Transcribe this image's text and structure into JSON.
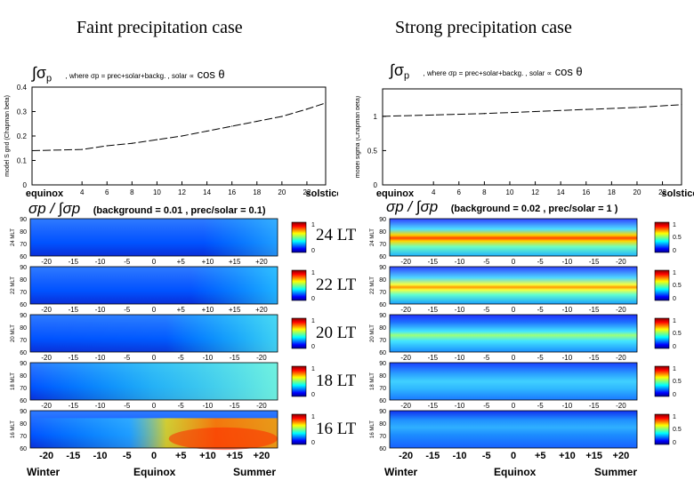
{
  "titles": {
    "left": "Faint precipitation case",
    "right": "Strong precipitation case"
  },
  "left_line": {
    "formula_left": "∫σ",
    "formula_sub": "p",
    "formula_mid": ", where σp = prec+solar+backg. , solar ∝",
    "formula_cos": "cos θ",
    "ylabel": "model S gnd (Chapman beta)",
    "xstart": "equinox",
    "xend": "solstice",
    "xticks": [
      "4",
      "6",
      "8",
      "10",
      "12",
      "14",
      "16",
      "18",
      "20",
      "22"
    ],
    "yticks": [
      "0",
      "0.1",
      "0.2",
      "0.3",
      "0.4"
    ]
  },
  "right_line": {
    "formula_left": "∫σ",
    "formula_sub": "p",
    "formula_mid": ", where σp = prec+solar+backg. , solar ∝",
    "formula_cos": "cos θ",
    "ylabel": "model sigma (Chapman beta)",
    "xstart": "equinox",
    "xend": "solstice",
    "xticks": [
      "4",
      "6",
      "8",
      "10",
      "12",
      "14",
      "16",
      "18",
      "20",
      "22"
    ],
    "yticks": [
      "0",
      "0.5",
      "1"
    ]
  },
  "left_ratio": {
    "formula": "σp / ∫σp",
    "params": "(background = 0.01 , prec/solar = 0.1)"
  },
  "right_ratio": {
    "formula": "σp / ∫σp",
    "params": "(background = 0.02 , prec/solar = 1 )"
  },
  "lt_labels": [
    "24 LT",
    "22 LT",
    "20 LT",
    "18 LT",
    "16 LT"
  ],
  "left_panel_ylabels": [
    "24 MLT",
    "22 MLT",
    "20 MLT",
    "18 MLT",
    "16 MLT"
  ],
  "right_panel_ylabels": [
    "24 MLT",
    "22 MLT",
    "20 MLT",
    "18 MLT",
    "16 MLT"
  ],
  "panel_yticks": [
    "90",
    "80",
    "70",
    "60"
  ],
  "panel_xticks_top": [
    "-20",
    "-15",
    "-10",
    "-5",
    "0",
    "+5",
    "+10",
    "+15",
    "+20"
  ],
  "panel_xticks_top_mirror": [
    "-20",
    "-15",
    "-10",
    "-5",
    "0",
    "-5",
    "-10",
    "-15",
    "-20"
  ],
  "bottom_xticks": [
    "-20",
    "-15",
    "-10",
    "-5",
    "0",
    "+5",
    "+10",
    "+15",
    "+20"
  ],
  "bottom_labels": {
    "winter": "Winter",
    "equinox": "Equinox",
    "summer": "Summer"
  },
  "colorbar_ticks_left": [
    "1",
    "0"
  ],
  "colorbar_ticks_right": [
    "1",
    "0.5",
    "0"
  ],
  "chart_data": [
    {
      "type": "line",
      "title": "",
      "xlabel": "",
      "ylabel": "model S gnd (Chapman beta)",
      "x": [
        0,
        4,
        6,
        8,
        10,
        12,
        14,
        16,
        18,
        20,
        22,
        23.5
      ],
      "series": [
        {
          "values": [
            0.14,
            0.145,
            0.16,
            0.17,
            0.185,
            0.2,
            0.22,
            0.24,
            0.26,
            0.28,
            0.31,
            0.335
          ]
        }
      ],
      "ylim": [
        0,
        0.4
      ],
      "xlim": [
        0,
        23.5
      ]
    },
    {
      "type": "line",
      "title": "",
      "xlabel": "",
      "ylabel": "model sigma (Chapman beta)",
      "x": [
        0,
        4,
        8,
        12,
        16,
        20,
        23.5
      ],
      "series": [
        {
          "values": [
            1.0,
            1.02,
            1.04,
            1.07,
            1.1,
            1.13,
            1.17
          ]
        }
      ],
      "ylim": [
        0,
        1.4
      ],
      "xlim": [
        0,
        23.5
      ]
    },
    {
      "type": "heatmap",
      "title": "",
      "panels_left": [
        "24 MLT",
        "22 MLT",
        "20 MLT",
        "18 MLT",
        "16 MLT"
      ],
      "panels_right": [
        "24 MLT",
        "22 MLT",
        "20 MLT",
        "18 MLT",
        "16 MLT"
      ],
      "xlim": [
        -23,
        23
      ],
      "ylim": [
        60,
        90
      ],
      "color_range": [
        0,
        1
      ]
    }
  ]
}
